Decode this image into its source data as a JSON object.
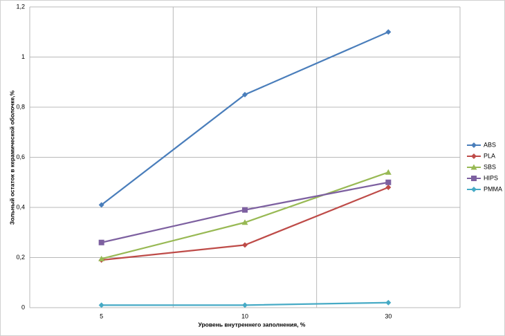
{
  "chart_data": {
    "type": "line",
    "x_label": "Уровень внутреннего заполнения, %",
    "y_label": "Зольный остаток  в керамической оболочке,%",
    "categories": [
      "5",
      "10",
      "30"
    ],
    "series": [
      {
        "name": "ABS",
        "color": "#4a7ebb",
        "marker": "diamond",
        "values": [
          0.41,
          0.85,
          1.1
        ]
      },
      {
        "name": "PLA",
        "color": "#be4b48",
        "marker": "diamond",
        "values": [
          0.19,
          0.25,
          0.48
        ]
      },
      {
        "name": "SBS",
        "color": "#98b954",
        "marker": "triangle",
        "values": [
          0.195,
          0.34,
          0.54
        ]
      },
      {
        "name": "HIPS",
        "color": "#7d60a0",
        "marker": "square",
        "values": [
          0.26,
          0.39,
          0.5
        ]
      },
      {
        "name": "PMMA",
        "color": "#46aac5",
        "marker": "diamond",
        "values": [
          0.01,
          0.01,
          0.02
        ]
      }
    ],
    "ylim": [
      0,
      1.2
    ],
    "yticks": [
      0,
      {
        "value": 0.2,
        "label": "0,2"
      },
      {
        "value": 0.4,
        "label": "0,4"
      },
      {
        "value": 0.6,
        "label": "0,6"
      },
      {
        "value": 0.8,
        "label": "0,8"
      },
      1,
      {
        "value": 1.2,
        "label": "1,2"
      }
    ],
    "grid": true,
    "legend": "right"
  }
}
